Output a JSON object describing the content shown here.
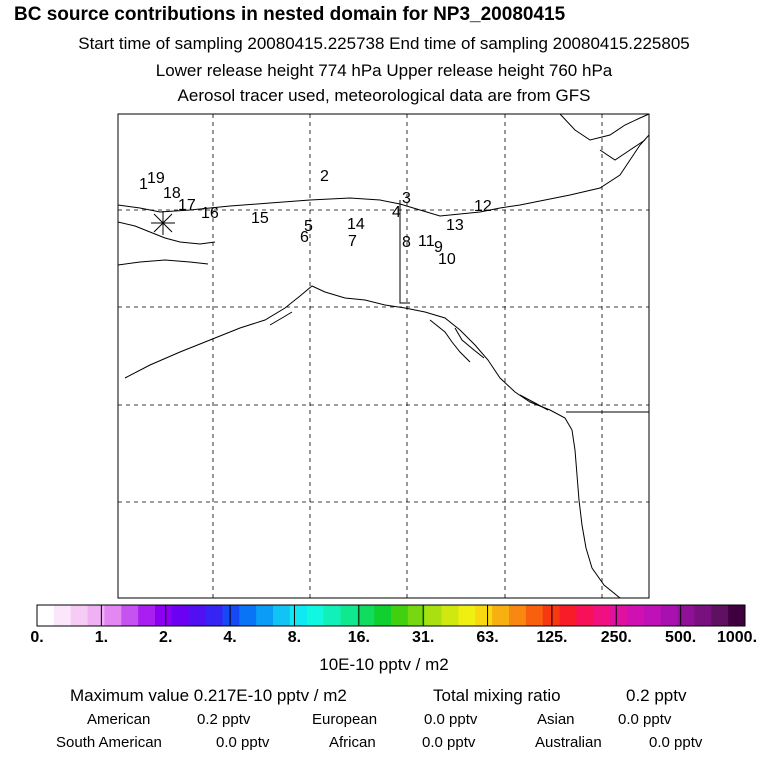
{
  "header": {
    "title": "BC  source contributions in nested domain for NP3_20080415",
    "line1": "Start time of sampling 20080415.225738     End time of sampling 20080415.225805",
    "line2": "Lower release height  774 hPa        Upper release height  760 hPa",
    "line3": "Aerosol tracer used, meteorological data are from GFS"
  },
  "trajectory_labels": [
    "1",
    "2",
    "3",
    "4",
    "5",
    "6",
    "7",
    "8",
    "9",
    "10",
    "11",
    "12",
    "13",
    "14",
    "15",
    "16",
    "17",
    "18",
    "19"
  ],
  "colorbar": {
    "tick_labels": [
      "0.",
      "1.",
      "2.",
      "4.",
      "8.",
      "16.",
      "31.",
      "63.",
      "125.",
      "250.",
      "500.",
      "1000."
    ],
    "colors": [
      "#ffffff",
      "#fbe6fb",
      "#f6ccf6",
      "#efb0f4",
      "#e388f3",
      "#c653f0",
      "#a91ef0",
      "#8b00f0",
      "#6c00f2",
      "#5010f2",
      "#3524f4",
      "#1648f5",
      "#0a74f6",
      "#0a9cf6",
      "#10c4f6",
      "#10e8f4",
      "#10f8e0",
      "#10f0b8",
      "#10e890",
      "#10dc60",
      "#10d030",
      "#40d010",
      "#78d810",
      "#a8e010",
      "#d0e810",
      "#f0f010",
      "#f8d810",
      "#f8b010",
      "#f88810",
      "#f86010",
      "#f83810",
      "#f81c28",
      "#f81058",
      "#f01080",
      "#e010a0",
      "#d010b0",
      "#c010b8",
      "#a810b0",
      "#901098",
      "#781080",
      "#601060",
      "#400040"
    ],
    "units": "10E-10 pptv / m2"
  },
  "summary": {
    "max_label": "Maximum value  0.217E-10 pptv / m2",
    "total_label": "Total mixing ratio",
    "total_value": "0.2 pptv",
    "american_label": "American",
    "american_value": "0.2 pptv",
    "european_label": "European",
    "european_value": "0.0 pptv",
    "asian_label": "Asian",
    "asian_value": "0.0 pptv",
    "south_american_label": "South American",
    "south_american_value": "0.0 pptv",
    "african_label": "African",
    "african_value": "0.0 pptv",
    "australian_label": "Australian",
    "australian_value": "0.0 pptv"
  }
}
